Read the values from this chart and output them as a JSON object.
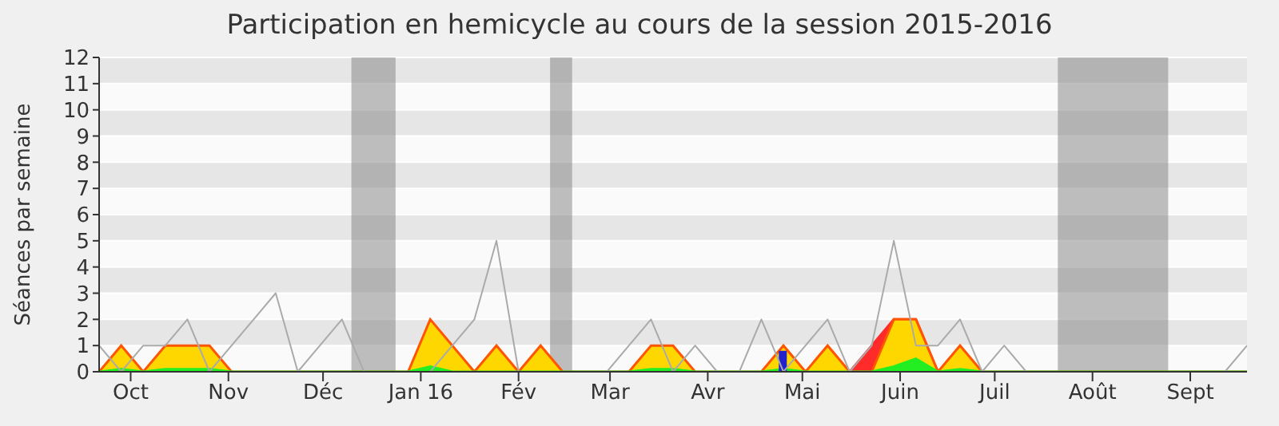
{
  "chart_data": {
    "type": "area",
    "title": "Participation en hemicycle au cours de la session 2015-2016",
    "ylabel": "Séances par semaine",
    "x": [
      "2015-09-21",
      "2015-09-28",
      "2015-10-05",
      "2015-10-12",
      "2015-10-19",
      "2015-10-26",
      "2015-11-02",
      "2015-11-09",
      "2015-11-16",
      "2015-11-23",
      "2015-11-30",
      "2015-12-07",
      "2015-12-14",
      "2015-12-21",
      "2015-12-28",
      "2016-01-04",
      "2016-01-11",
      "2016-01-18",
      "2016-01-25",
      "2016-02-01",
      "2016-02-08",
      "2016-02-15",
      "2016-02-22",
      "2016-02-29",
      "2016-03-07",
      "2016-03-14",
      "2016-03-21",
      "2016-03-28",
      "2016-04-04",
      "2016-04-11",
      "2016-04-18",
      "2016-04-25",
      "2016-05-02",
      "2016-05-09",
      "2016-05-16",
      "2016-05-23",
      "2016-05-30",
      "2016-06-06",
      "2016-06-13",
      "2016-06-20",
      "2016-06-27",
      "2016-07-04",
      "2016-07-11",
      "2016-07-18",
      "2016-07-25",
      "2016-08-01",
      "2016-08-08",
      "2016-08-15",
      "2016-08-22",
      "2016-08-29",
      "2016-09-05",
      "2016-09-12",
      "2016-09-19"
    ],
    "xlim": [
      "2015-09-21",
      "2016-09-19"
    ],
    "xticks": [
      {
        "value": "2015-10-01",
        "label": "Oct"
      },
      {
        "value": "2015-11-01",
        "label": "Nov"
      },
      {
        "value": "2015-12-01",
        "label": "Déc"
      },
      {
        "value": "2016-01-01",
        "label": "Jan 16"
      },
      {
        "value": "2016-02-01",
        "label": "Fév"
      },
      {
        "value": "2016-03-01",
        "label": "Mar"
      },
      {
        "value": "2016-04-01",
        "label": "Avr"
      },
      {
        "value": "2016-05-01",
        "label": "Mai"
      },
      {
        "value": "2016-06-01",
        "label": "Juin"
      },
      {
        "value": "2016-07-01",
        "label": "Juil"
      },
      {
        "value": "2016-08-01",
        "label": "Août"
      },
      {
        "value": "2016-09-01",
        "label": "Sept"
      }
    ],
    "ylim": [
      0,
      12
    ],
    "yticks": [
      0,
      1,
      2,
      3,
      4,
      5,
      6,
      7,
      8,
      9,
      10,
      11,
      12
    ],
    "grid": "y",
    "bands": [
      {
        "axis": "x",
        "from": "2015-12-10",
        "to": "2015-12-24",
        "color": "#808080"
      },
      {
        "axis": "x",
        "from": "2016-02-11",
        "to": "2016-02-18",
        "color": "#808080"
      },
      {
        "axis": "x",
        "from": "2016-07-21",
        "to": "2016-08-25",
        "color": "#808080"
      }
    ],
    "series": [
      {
        "type": "line",
        "color": "#aaaaaa",
        "values": [
          1,
          0,
          1,
          1,
          2,
          0,
          1,
          2,
          3,
          0,
          1,
          2,
          0,
          0,
          0,
          0,
          1,
          2,
          5,
          0,
          0,
          0,
          0,
          0,
          1,
          2,
          0,
          1,
          0,
          0,
          2,
          0,
          1,
          2,
          0,
          1,
          5,
          1,
          1,
          2,
          0,
          1,
          0,
          0,
          0,
          0,
          0,
          0,
          0,
          0,
          0,
          0,
          1
        ]
      },
      {
        "color": "#ff2a2a",
        "values": [
          null,
          null,
          null,
          null,
          null,
          null,
          null,
          null,
          null,
          null,
          null,
          null,
          null,
          null,
          null,
          null,
          null,
          null,
          null,
          null,
          null,
          null,
          null,
          null,
          null,
          null,
          null,
          null,
          null,
          null,
          null,
          null,
          null,
          null,
          0,
          1,
          2,
          2,
          0,
          null,
          null,
          null,
          null,
          null,
          null,
          null,
          null,
          null,
          null,
          null,
          null,
          null,
          null
        ]
      },
      {
        "color": "#ffd700",
        "values": [
          0,
          1,
          0,
          1,
          1,
          1,
          0,
          0,
          0,
          0,
          0,
          0,
          0,
          0,
          0,
          2,
          1,
          0,
          1,
          0,
          1,
          0,
          0,
          0,
          0,
          1,
          1,
          0,
          0,
          0,
          0,
          1,
          0,
          1,
          0,
          0,
          2,
          2,
          0,
          1,
          0,
          0,
          0,
          0,
          0,
          0,
          0,
          0,
          0,
          0,
          0,
          0,
          0
        ]
      },
      {
        "color": "#22ee22",
        "values": [
          0,
          0.1,
          0,
          0.1,
          0.1,
          0.1,
          0,
          0,
          0,
          0,
          0,
          0,
          0,
          0,
          0,
          0.2,
          0,
          0,
          0,
          0,
          0,
          0,
          0,
          0,
          0,
          0.1,
          0.1,
          0,
          0,
          0,
          0,
          0.1,
          0,
          0,
          0,
          0,
          0.2,
          0.5,
          0,
          0.1,
          0,
          0,
          0,
          0,
          0,
          0,
          0,
          0,
          0,
          0,
          0,
          0,
          0
        ]
      },
      {
        "type": "bar",
        "color": "#2222cc",
        "values": [
          null,
          null,
          null,
          null,
          null,
          null,
          null,
          null,
          null,
          null,
          null,
          null,
          null,
          null,
          null,
          null,
          null,
          null,
          null,
          null,
          null,
          null,
          null,
          null,
          null,
          null,
          null,
          null,
          null,
          null,
          null,
          0.8,
          null,
          null,
          null,
          null,
          null,
          null,
          null,
          null,
          null,
          null,
          null,
          null,
          null,
          null,
          null,
          null,
          null,
          null,
          null,
          null,
          null
        ]
      }
    ]
  }
}
